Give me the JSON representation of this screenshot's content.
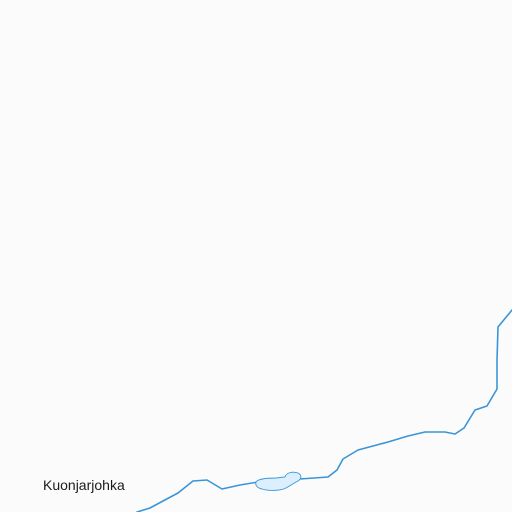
{
  "map": {
    "place_label": "Kuonjarjohka",
    "colors": {
      "background": "#fbfbfb",
      "river": "#3a95d8",
      "lake_fill": "#dcefff",
      "lake_stroke": "#3a95d8",
      "label_text": "#1a1a1a"
    }
  }
}
